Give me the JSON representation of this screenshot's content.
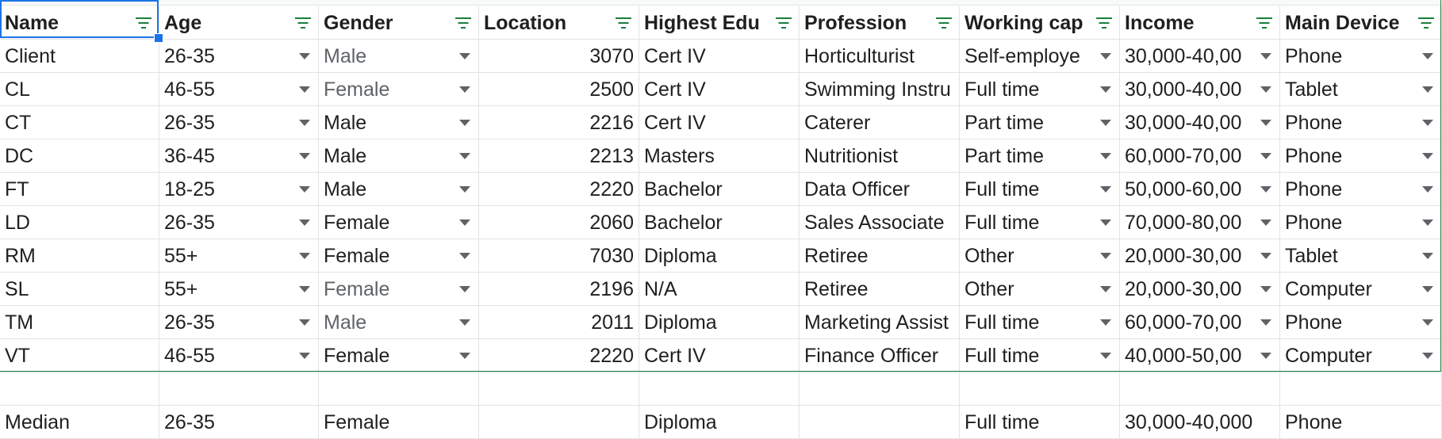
{
  "headers": [
    "Name",
    "Age",
    "Gender",
    "Location",
    "Highest Edu",
    "Profession",
    "Working cap",
    "Income",
    "Main Device"
  ],
  "rows": [
    [
      "Client",
      "26-35",
      "Male",
      "3070",
      "Cert IV",
      "Horticulturist",
      "Self-employe",
      "30,000-40,00",
      "Phone"
    ],
    [
      "CL",
      "46-55",
      "Female",
      "2500",
      "Cert IV",
      "Swimming Instru",
      "Full time",
      "30,000-40,00",
      "Tablet"
    ],
    [
      "CT",
      "26-35",
      "Male",
      "2216",
      "Cert IV",
      "Caterer",
      "Part time",
      "30,000-40,00",
      "Phone"
    ],
    [
      "DC",
      "36-45",
      "Male",
      "2213",
      "Masters",
      "Nutritionist",
      "Part time",
      "60,000-70,00",
      "Phone"
    ],
    [
      "FT",
      "18-25",
      "Male",
      "2220",
      "Bachelor",
      "Data Officer",
      "Full time",
      "50,000-60,00",
      "Phone"
    ],
    [
      "LD",
      "26-35",
      "Female",
      "2060",
      "Bachelor",
      "Sales Associate",
      "Full time",
      "70,000-80,00",
      "Phone"
    ],
    [
      "RM",
      "55+",
      "Female",
      "7030",
      "Diploma",
      "Retiree",
      "Other",
      "20,000-30,00",
      "Tablet"
    ],
    [
      "SL",
      "55+",
      "Female",
      "2196",
      "N/A",
      "Retiree",
      "Other",
      "20,000-30,00",
      "Computer"
    ],
    [
      "TM",
      "26-35",
      "Male",
      "2011",
      "Diploma",
      "Marketing Assist",
      "Full time",
      "60,000-70,00",
      "Phone"
    ],
    [
      "VT",
      "46-55",
      "Female",
      "2220",
      "Cert IV",
      "Finance Officer",
      "Full time",
      "40,000-50,00",
      "Computer"
    ]
  ],
  "median": [
    "Median",
    "26-35",
    "Female",
    "",
    "Diploma",
    "",
    "Full time",
    "30,000-40,000",
    "Phone"
  ],
  "colors": {
    "filter_icon": "#188038",
    "selection": "#1a73e8",
    "grid": "#e2e3e3"
  }
}
